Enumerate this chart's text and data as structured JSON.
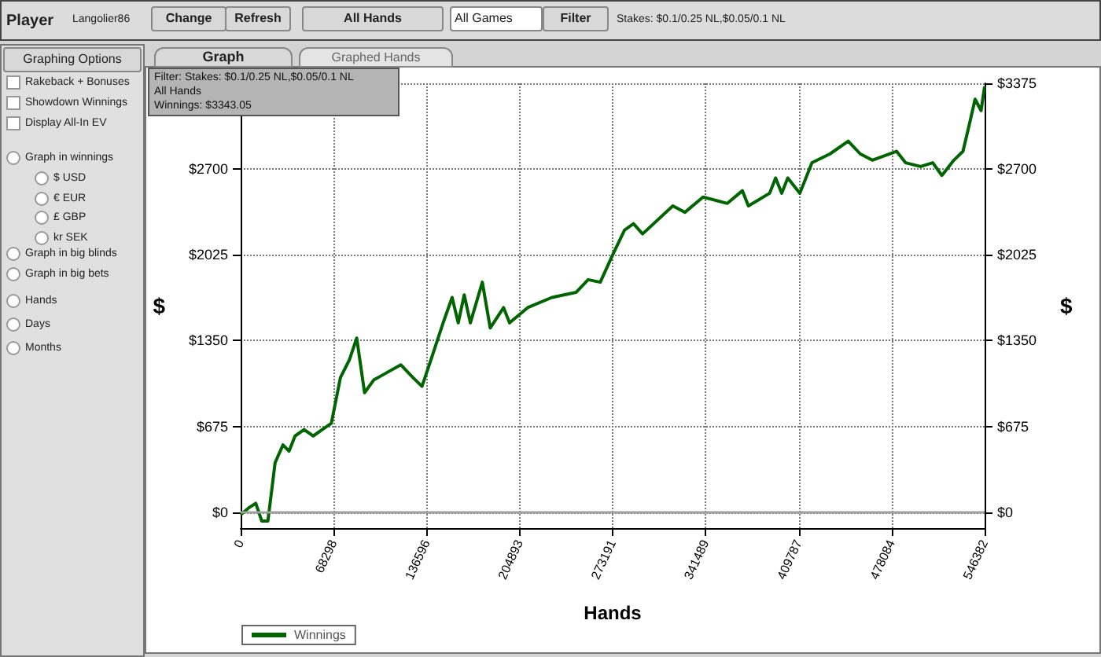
{
  "chart_data": {
    "type": "line",
    "xlabel": "Hands",
    "ylabel": "$",
    "y2label": "$",
    "annotations": [
      "Player",
      "Langolier86",
      "Change",
      "Refresh",
      "All Hands",
      "All Games",
      "Filter",
      "Stakes: $0.1/0.25 NL,$0.05/0.1 NL",
      "Graphing Options",
      "Rakeback + Bonuses",
      "Showdown Winnings",
      "Display All-In EV",
      "Graph in winnings",
      "$ USD",
      "€ EUR",
      "£ GBP",
      "kr SEK",
      "Graph in big blinds",
      "Graph in big bets",
      "Hands",
      "Days",
      "Months",
      "Graph",
      "Graphed Hands",
      "Filter: Stakes: $0.1/0.25 NL,$0.05/0.1 NL\nAll Hands\nWinnings: $3343.05"
    ],
    "x": [
      0,
      6660,
      11100,
      15540,
      20000,
      22200,
      25300,
      31100,
      35500,
      39960,
      46600,
      53300,
      59900,
      66600,
      73300,
      79900,
      85250,
      91000,
      97700,
      104300,
      117600,
      126500,
      133200,
      139800,
      148700,
      155300,
      159800,
      164200,
      168700,
      177500,
      183300,
      193100,
      197500,
      210800,
      228600,
      246300,
      255200,
      264100,
      273000,
      281900,
      288500,
      295200,
      317400,
      326300,
      339600,
      357400,
      368500,
      372900,
      388500,
      392900,
      397400,
      401800,
      410700,
      419600,
      432900,
      446200,
      455000,
      463900,
      481700,
      488300,
      499400,
      508300,
      515000,
      523800,
      530500,
      534900,
      539400,
      543800,
      546382
    ],
    "series": [
      {
        "name": "Winnings",
        "color": "#006400",
        "values": [
          -20,
          40,
          70,
          -70,
          -70,
          120,
          390,
          530,
          480,
          600,
          650,
          600,
          650,
          700,
          1060,
          1200,
          1370,
          940,
          1040,
          1080,
          1160,
          1060,
          990,
          1200,
          1490,
          1690,
          1490,
          1710,
          1490,
          1810,
          1450,
          1610,
          1490,
          1610,
          1690,
          1730,
          1830,
          1810,
          2020,
          2220,
          2270,
          2190,
          2410,
          2360,
          2480,
          2430,
          2530,
          2410,
          2510,
          2630,
          2510,
          2630,
          2510,
          2750,
          2820,
          2920,
          2820,
          2770,
          2840,
          2750,
          2720,
          2750,
          2650,
          2770,
          2840,
          3040,
          3250,
          3160,
          3350
        ]
      }
    ],
    "xlim": [
      0,
      546382
    ],
    "xticks": [
      0,
      68298,
      136596,
      204893,
      273191,
      341489,
      409787,
      478084,
      546382
    ],
    "ylim": [
      -125,
      3375
    ],
    "yticks": [
      {
        "value": 0,
        "label": "$0"
      },
      {
        "value": 675,
        "label": "$675"
      },
      {
        "value": 1350,
        "label": "$1350"
      },
      {
        "value": 2025,
        "label": "$2025"
      },
      {
        "value": 2700,
        "label": "$2700"
      },
      {
        "value": 3375,
        "label": null
      }
    ],
    "y2lim": [
      -125,
      3375
    ],
    "y2ticks": [
      {
        "value": 0,
        "label": "$0"
      },
      {
        "value": 675,
        "label": "$675"
      },
      {
        "value": 1350,
        "label": "$1350"
      },
      {
        "value": 2025,
        "label": "$2025"
      },
      {
        "value": 2700,
        "label": "$2700"
      },
      {
        "value": 3375,
        "label": "$3375"
      }
    ],
    "ref_lines": [
      {
        "axis": "y",
        "value": 0,
        "color": "#a0a0a0"
      }
    ],
    "grid": true,
    "legend": "bottom left",
    "marker": "none",
    "line_style": "solid"
  }
}
